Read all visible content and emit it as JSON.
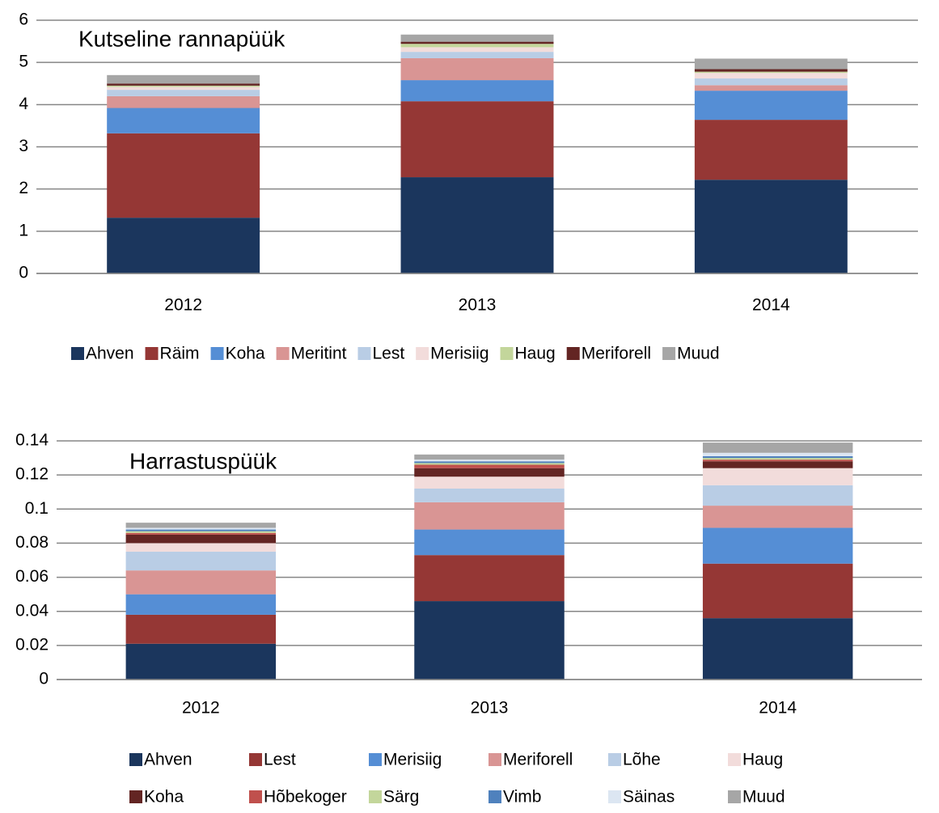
{
  "chart_data": [
    {
      "type": "bar",
      "stacked": true,
      "title": "Kutseline rannapüük",
      "categories": [
        "2012",
        "2013",
        "2014"
      ],
      "ylim": [
        0,
        6
      ],
      "yticks": [
        0,
        1,
        2,
        3,
        4,
        5,
        6
      ],
      "grid": true,
      "legend": "bottom",
      "series": [
        {
          "name": "Ahven",
          "color": "#1b365d",
          "values": [
            1.32,
            2.28,
            2.22
          ]
        },
        {
          "name": "Räim",
          "color": "#953735",
          "values": [
            2.0,
            1.8,
            1.42
          ]
        },
        {
          "name": "Koha",
          "color": "#558ed5",
          "values": [
            0.6,
            0.5,
            0.69
          ]
        },
        {
          "name": "Meritint",
          "color": "#d99594",
          "values": [
            0.28,
            0.52,
            0.13
          ]
        },
        {
          "name": "Lest",
          "color": "#b9cde5",
          "values": [
            0.15,
            0.15,
            0.16
          ]
        },
        {
          "name": "Merisiig",
          "color": "#f2dcdb",
          "values": [
            0.07,
            0.11,
            0.13
          ]
        },
        {
          "name": "Haug",
          "color": "#c3d69b",
          "values": [
            0.03,
            0.08,
            0.03
          ]
        },
        {
          "name": "Meriforell",
          "color": "#632523",
          "values": [
            0.05,
            0.05,
            0.06
          ]
        },
        {
          "name": "Muud",
          "color": "#a6a6a6",
          "values": [
            0.2,
            0.17,
            0.25
          ]
        }
      ]
    },
    {
      "type": "bar",
      "stacked": true,
      "title": "Harrastuspüük",
      "categories": [
        "2012",
        "2013",
        "2014"
      ],
      "ylim": [
        0,
        0.14
      ],
      "yticks": [
        0,
        0.02,
        0.04,
        0.06,
        0.08,
        0.1,
        0.12,
        0.14
      ],
      "grid": true,
      "legend": "bottom",
      "series": [
        {
          "name": "Ahven",
          "color": "#1b365d",
          "values": [
            0.021,
            0.046,
            0.036
          ]
        },
        {
          "name": "Lest",
          "color": "#953735",
          "values": [
            0.017,
            0.027,
            0.032
          ]
        },
        {
          "name": "Merisiig",
          "color": "#558ed5",
          "values": [
            0.012,
            0.015,
            0.021
          ]
        },
        {
          "name": "Meriforell",
          "color": "#d99594",
          "values": [
            0.014,
            0.016,
            0.013
          ]
        },
        {
          "name": "Lõhe",
          "color": "#b9cde5",
          "values": [
            0.011,
            0.008,
            0.012
          ]
        },
        {
          "name": "Haug",
          "color": "#f2dcdb",
          "values": [
            0.005,
            0.007,
            0.01
          ]
        },
        {
          "name": "Koha",
          "color": "#632523",
          "values": [
            0.005,
            0.005,
            0.004
          ]
        },
        {
          "name": "Hõbekoger",
          "color": "#c0504d",
          "values": [
            0.001,
            0.002,
            0.001
          ]
        },
        {
          "name": "Särg",
          "color": "#c3d69b",
          "values": [
            0.001,
            0.001,
            0.001
          ]
        },
        {
          "name": "Vimb",
          "color": "#4f81bd",
          "values": [
            0.001,
            0.001,
            0.001
          ]
        },
        {
          "name": "Säinas",
          "color": "#dce6f2",
          "values": [
            0.001,
            0.001,
            0.002
          ]
        },
        {
          "name": "Muud",
          "color": "#a6a6a6",
          "values": [
            0.003,
            0.003,
            0.006
          ]
        }
      ]
    }
  ]
}
